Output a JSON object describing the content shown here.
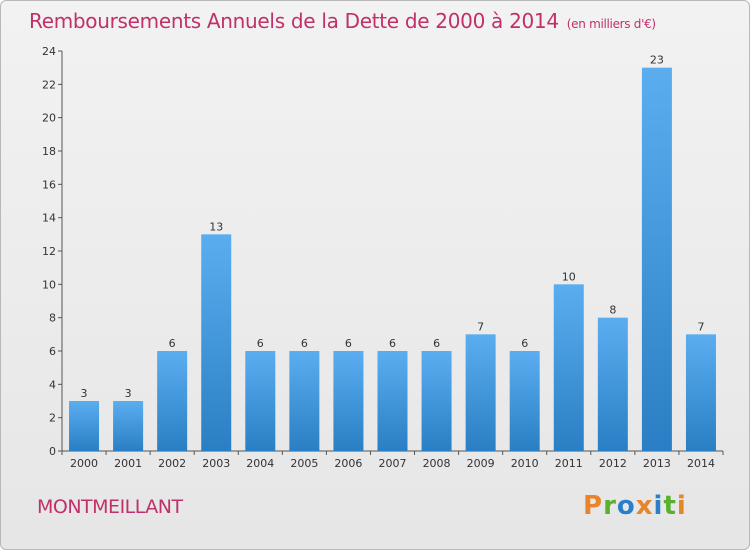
{
  "chart_data": {
    "type": "bar",
    "title": "Remboursements Annuels de la Dette de 2000 à 2014",
    "subtitle": "(en milliers d'€)",
    "categories": [
      "2000",
      "2001",
      "2002",
      "2003",
      "2004",
      "2005",
      "2006",
      "2007",
      "2008",
      "2009",
      "2010",
      "2011",
      "2012",
      "2013",
      "2014"
    ],
    "values": [
      3,
      3,
      6,
      13,
      6,
      6,
      6,
      6,
      6,
      7,
      6,
      10,
      8,
      23,
      7
    ],
    "ylim": [
      0,
      24
    ],
    "yticks": [
      0,
      2,
      4,
      6,
      8,
      10,
      12,
      14,
      16,
      18,
      20,
      22,
      24
    ],
    "grid": false,
    "bar_color_top": "#5aaef0",
    "bar_color_bottom": "#2a7fc4"
  },
  "footer": {
    "place": "MONTMEILLANT",
    "logo": "Proxiti",
    "logo_colors": [
      "#e8842a",
      "#5ab030",
      "#2a80c8",
      "#e8842a",
      "#2a80c8",
      "#5ab030",
      "#e8842a"
    ]
  }
}
